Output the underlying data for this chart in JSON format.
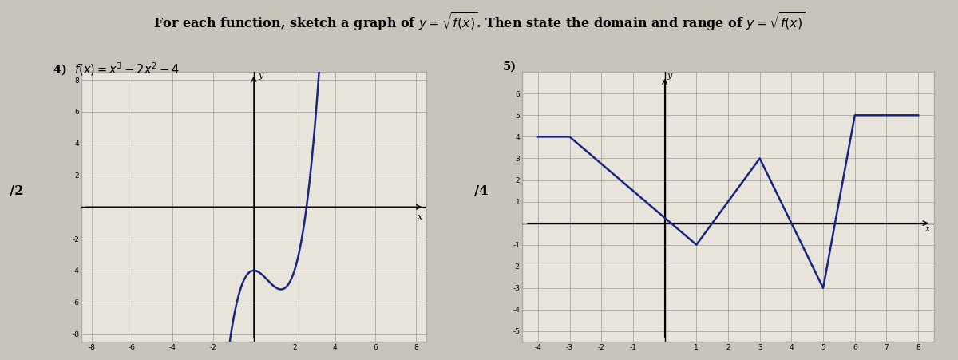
{
  "bg_color": "#c8c4bc",
  "paper_color": "#e8e4dc",
  "title_text": "For each function, sketch a graph of $y = \\sqrt{f(x)}$. Then state the domain and range of $y = \\sqrt{f(x)}$",
  "label4": "4)  $f(x) = x^3 - 2x^2 - 4$",
  "label5": "5)",
  "label_12": "/2",
  "label_14": "/4",
  "graph4": {
    "xlim": [
      -8.5,
      8.5
    ],
    "ylim": [
      -8.5,
      8.5
    ],
    "xticks": [
      -8,
      -6,
      -4,
      -2,
      2,
      4,
      6,
      8
    ],
    "yticks": [
      -8,
      -6,
      -4,
      -2,
      2,
      4,
      6,
      8
    ],
    "xtick_labels": [
      "-8",
      "-6",
      "-4",
      "-2",
      "2",
      "4",
      "6",
      "8"
    ],
    "ytick_labels": [
      "-8",
      "-6",
      "-4",
      "-2",
      "2",
      "4",
      "6",
      "8"
    ],
    "curve_color": "#1a237e",
    "curve_lw": 1.8,
    "box_color": "#aaaaaa"
  },
  "graph5": {
    "xlim": [
      -4.5,
      8.5
    ],
    "ylim": [
      -5.5,
      7.0
    ],
    "xticks": [
      -4,
      -3,
      -2,
      -1,
      1,
      2,
      3,
      4,
      5,
      6,
      7,
      8
    ],
    "yticks": [
      -5,
      -4,
      -3,
      -2,
      -1,
      1,
      2,
      3,
      4,
      5,
      6
    ],
    "xtick_labels": [
      "-4",
      "-3",
      "-2",
      "-1",
      "1",
      "2",
      "3",
      "4",
      "5",
      "6",
      "7",
      "8"
    ],
    "ytick_labels": [
      "-5",
      "-4",
      "-3",
      "-2",
      "-1",
      "1",
      "2",
      "3",
      "4",
      "5",
      "6"
    ],
    "curve_color": "#1a237e",
    "curve_lw": 1.8,
    "box_color": "#aaaaaa",
    "points_x": [
      -4,
      -3,
      1,
      3,
      5,
      6,
      8
    ],
    "points_y": [
      4,
      4,
      -1,
      3,
      -3,
      5,
      5
    ]
  }
}
